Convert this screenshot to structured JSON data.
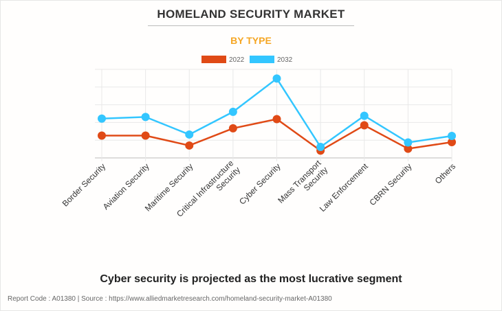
{
  "title": "HOMELAND SECURITY MARKET",
  "subtitle": "BY TYPE",
  "tagline": "Cyber security is projected as the most lucrative segment",
  "source": "Report Code : A01380  |  Source : https://www.alliedmarketresearch.com/homeland-security-market-A01380",
  "chart_data": {
    "type": "line",
    "categories": [
      [
        "Border Security"
      ],
      [
        "Aviation Security"
      ],
      [
        "Maritime Security"
      ],
      [
        "Critical Infrastructure",
        "Security"
      ],
      [
        "Cyber Security"
      ],
      [
        "Mass Transport",
        "Security"
      ],
      [
        "Law Enforcement"
      ],
      [
        "CBRN Security"
      ],
      [
        "Others"
      ]
    ],
    "series": [
      {
        "name": "2022",
        "color": "#e04a16",
        "values": [
          1.26,
          1.26,
          0.7,
          1.67,
          2.19,
          0.41,
          1.84,
          0.52,
          0.89
        ]
      },
      {
        "name": "2032",
        "color": "#33c6ff",
        "values": [
          2.22,
          2.31,
          1.32,
          2.6,
          4.48,
          0.62,
          2.38,
          0.87,
          1.24
        ]
      }
    ],
    "ylim": [
      0,
      5
    ],
    "y_tick_labels_shown": false,
    "grid": true,
    "legend": "top-center"
  }
}
